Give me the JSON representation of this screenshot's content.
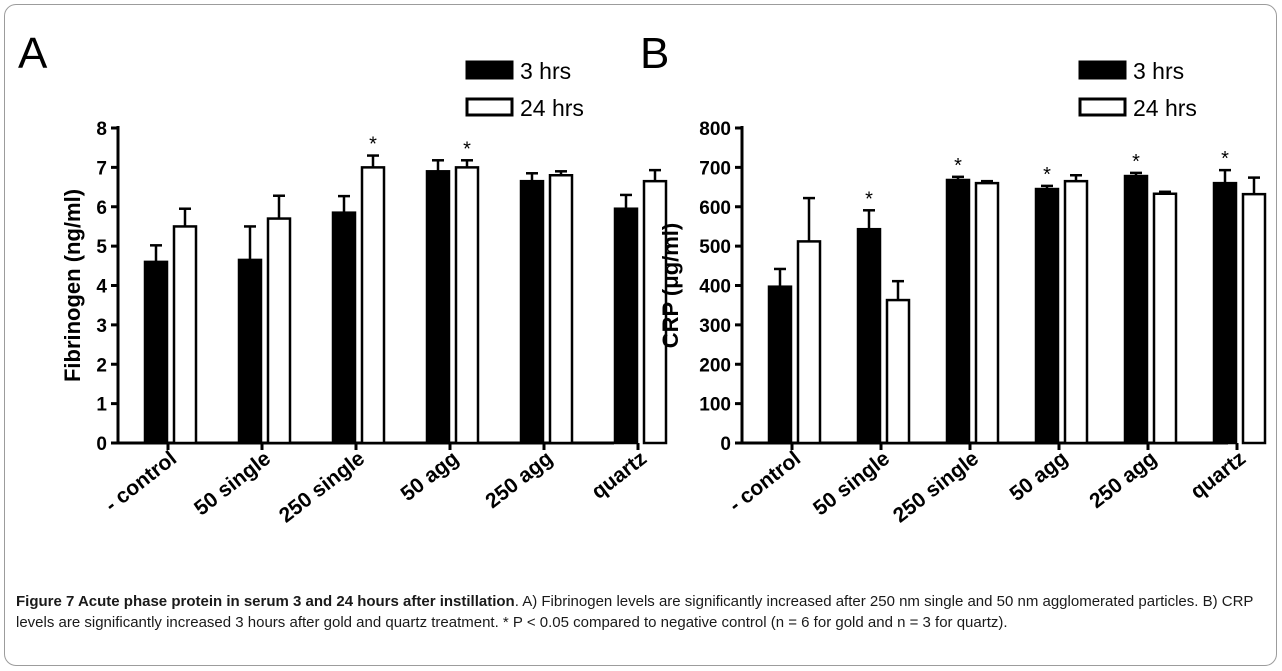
{
  "figure": {
    "caption_title": "Figure 7 Acute phase protein in serum 3 and 24 hours after instillation",
    "caption_body": ". A) Fibrinogen levels are significantly increased after 250 nm single and 50 nm agglomerated particles. B) CRP levels are significantly increased 3 hours after gold and quartz treatment. * P < 0.05 compared to negative control (n = 6 for gold and n = 3 for quartz)."
  },
  "chart_data": [
    {
      "panel_label": "A",
      "type": "bar",
      "ylabel": "Fibrinogen (ng/ml)",
      "ylim": [
        0,
        8
      ],
      "yticks": [
        "0",
        "1",
        "2",
        "3",
        "4",
        "5",
        "6",
        "7",
        "8"
      ],
      "categories": [
        "- control",
        "50 single",
        "250 single",
        "50 agg",
        "250 agg",
        "quartz"
      ],
      "series": [
        {
          "name": "3 hrs",
          "fill": "#000000",
          "values": [
            4.6,
            4.65,
            5.85,
            6.9,
            6.65,
            5.95
          ],
          "errors": [
            0.42,
            0.85,
            0.42,
            0.28,
            0.2,
            0.35
          ]
        },
        {
          "name": "24 hrs",
          "fill": "#ffffff",
          "values": [
            5.5,
            5.7,
            7.0,
            7.0,
            6.8,
            6.65
          ],
          "errors": [
            0.45,
            0.58,
            0.3,
            0.18,
            0.1,
            0.28
          ]
        }
      ],
      "significance": [
        {
          "category": "250 single",
          "series": "24 hrs",
          "label": "*"
        },
        {
          "category": "50 agg",
          "series": "24 hrs",
          "label": "*"
        }
      ]
    },
    {
      "panel_label": "B",
      "type": "bar",
      "ylabel": "CRP (μg/ml)",
      "ylim": [
        0,
        800
      ],
      "yticks": [
        "0",
        "100",
        "200",
        "300",
        "400",
        "500",
        "600",
        "700",
        "800"
      ],
      "categories": [
        "- control",
        "50 single",
        "250 single",
        "50 agg",
        "250 agg",
        "quartz"
      ],
      "series": [
        {
          "name": "3 hrs",
          "fill": "#000000",
          "values": [
            397,
            543,
            668,
            645,
            678,
            660
          ],
          "errors": [
            45,
            48,
            8,
            8,
            8,
            33
          ]
        },
        {
          "name": "24 hrs",
          "fill": "#ffffff",
          "values": [
            512,
            363,
            660,
            665,
            633,
            632
          ],
          "errors": [
            110,
            48,
            5,
            15,
            5,
            42
          ]
        }
      ],
      "significance": [
        {
          "category": "50 single",
          "series": "3 hrs",
          "label": "*"
        },
        {
          "category": "250 single",
          "series": "3 hrs",
          "label": "*"
        },
        {
          "category": "50 agg",
          "series": "3 hrs",
          "label": "*"
        },
        {
          "category": "250 agg",
          "series": "3 hrs",
          "label": "*"
        },
        {
          "category": "quartz",
          "series": "3 hrs",
          "label": "*"
        }
      ]
    }
  ]
}
